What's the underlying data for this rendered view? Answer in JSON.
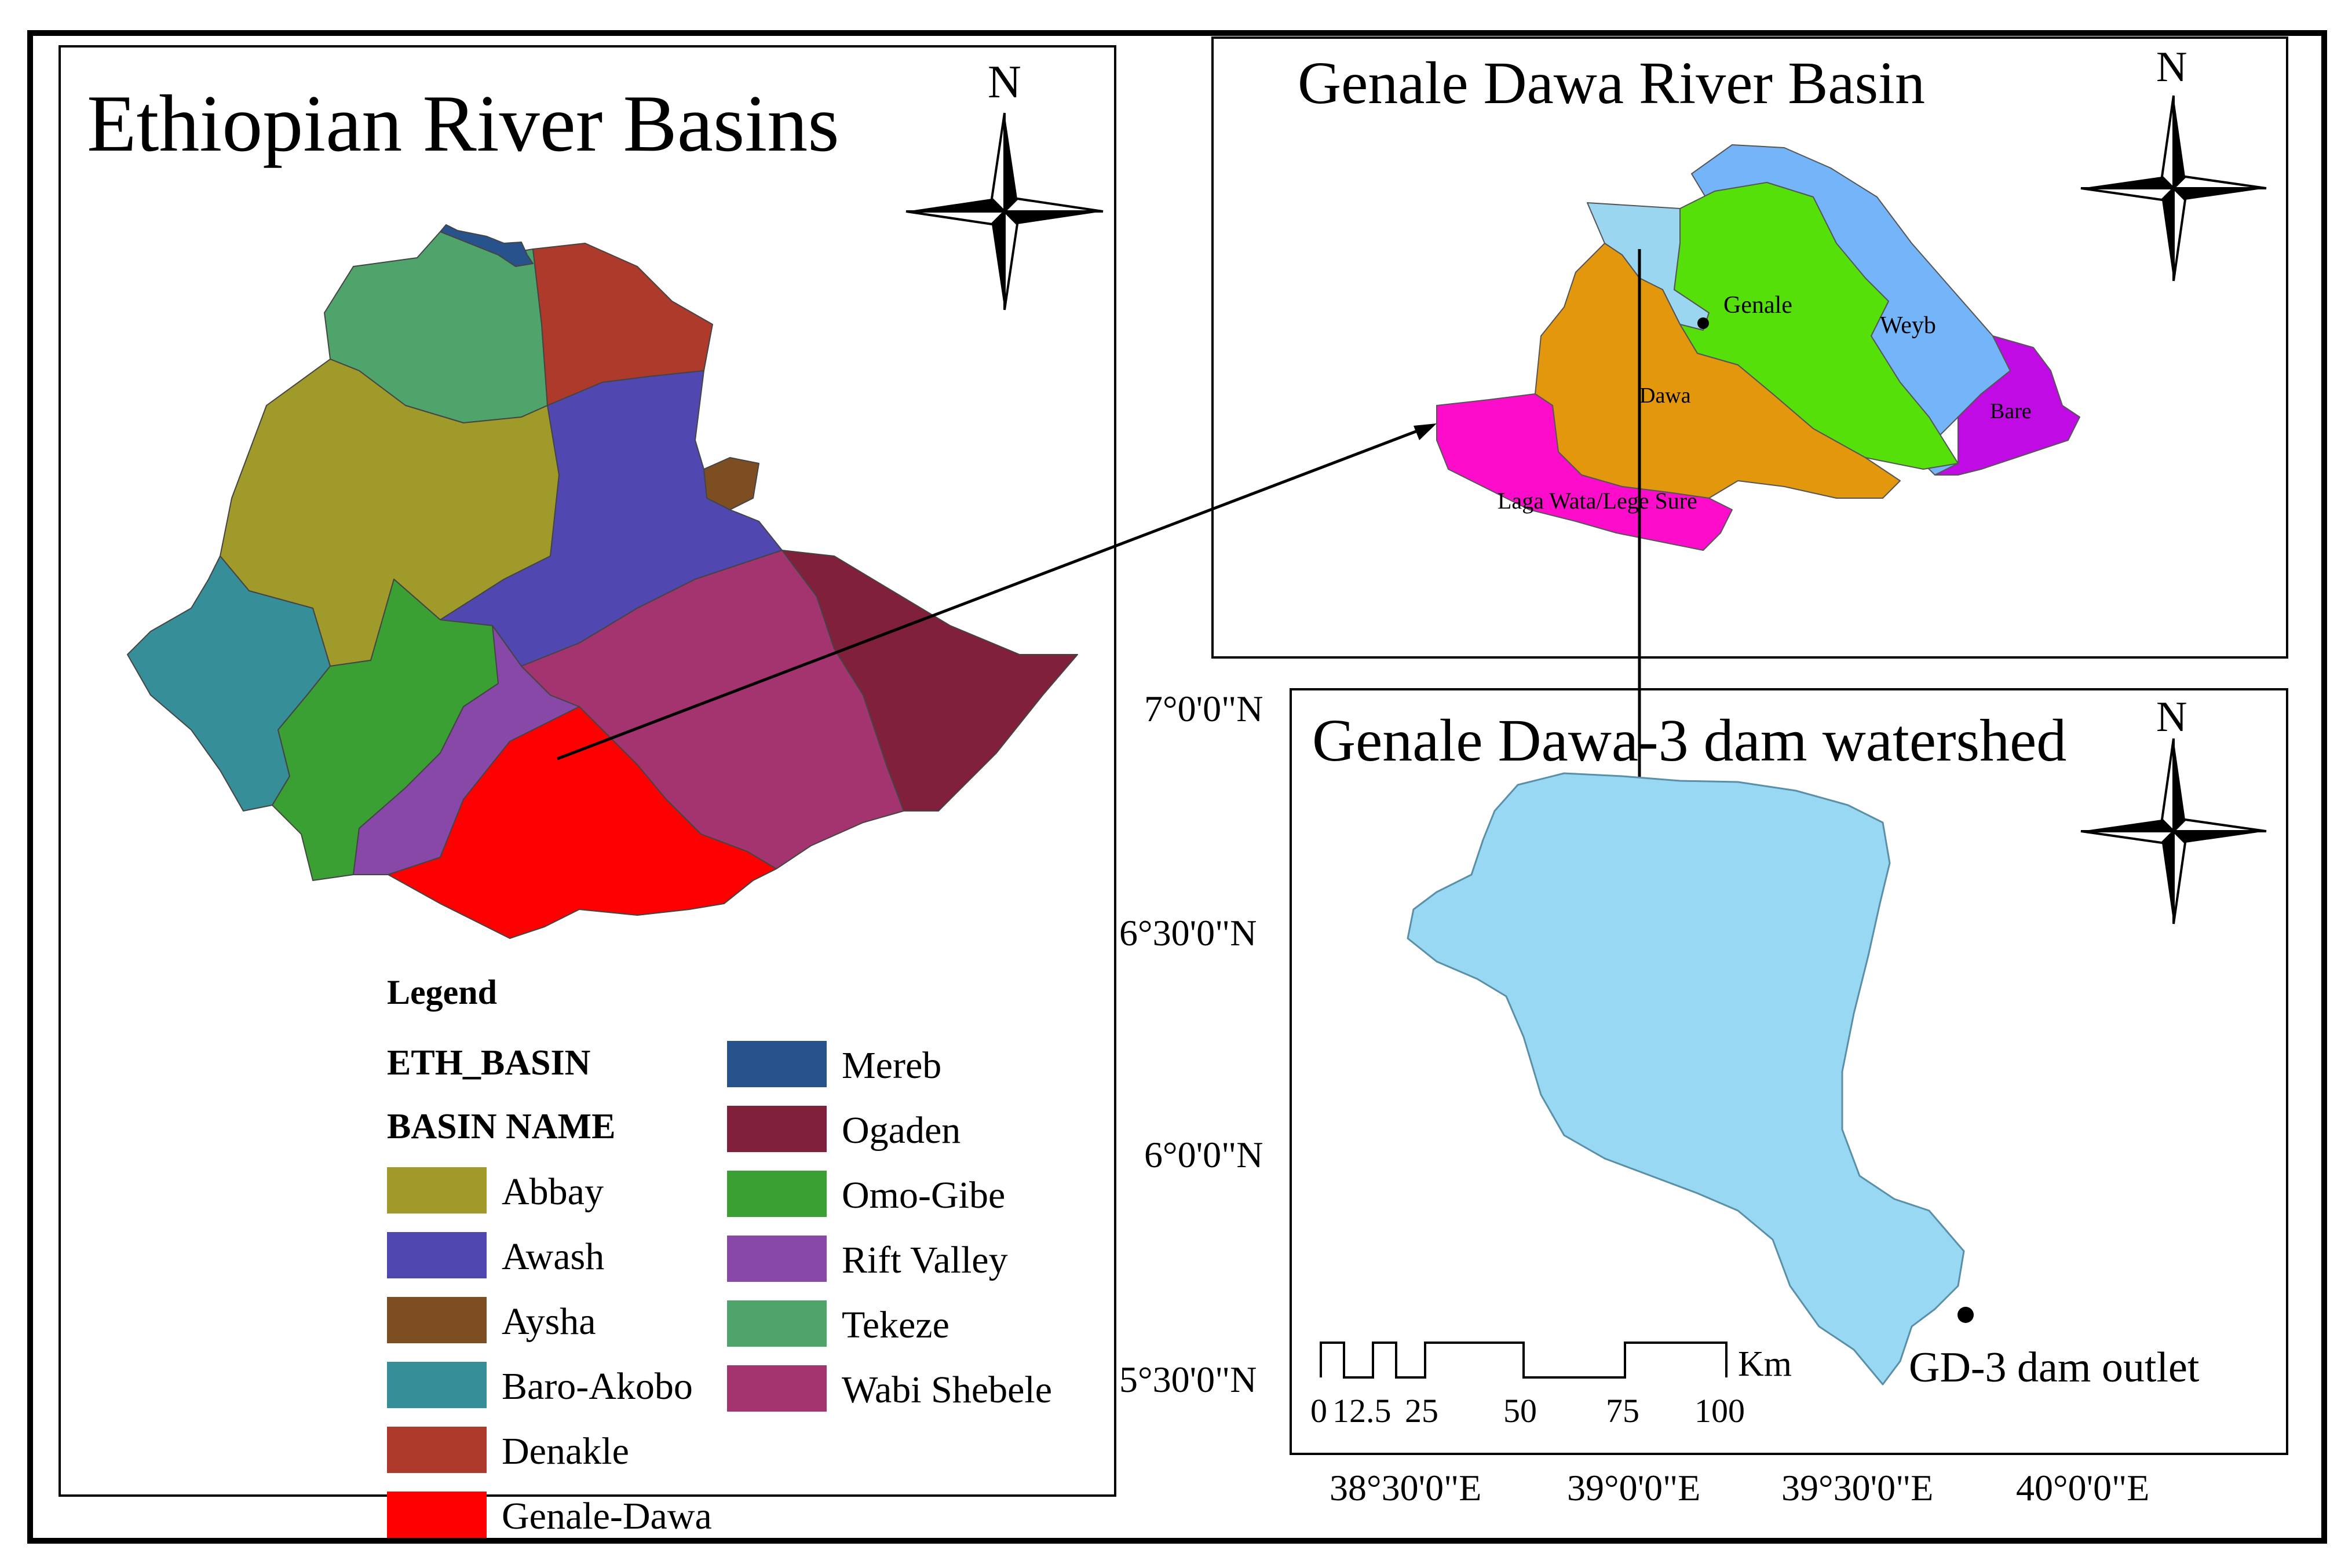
{
  "panel_left": {
    "title": "Ethiopian River Basins",
    "north": "N",
    "legend": {
      "heading": "Legend",
      "layer": "ETH_BASIN",
      "field": "BASIN NAME",
      "items": [
        {
          "label": "Abbay",
          "color": "#9f9a2a"
        },
        {
          "label": "Awash",
          "color": "#5048b0"
        },
        {
          "label": "Aysha",
          "color": "#7c4e22"
        },
        {
          "label": "Baro-Akobo",
          "color": "#368e98"
        },
        {
          "label": "Denakle",
          "color": "#ad3a2b"
        },
        {
          "label": "Genale-Dawa",
          "color": "#fe0000"
        },
        {
          "label": "Mereb",
          "color": "#27528c"
        },
        {
          "label": "Ogaden",
          "color": "#80203a"
        },
        {
          "label": "Omo-Gibe",
          "color": "#3aa034"
        },
        {
          "label": "Rift Valley",
          "color": "#8848a8"
        },
        {
          "label": "Tekeze",
          "color": "#4fa46c"
        },
        {
          "label": "Wabi Shebele",
          "color": "#a4346f"
        }
      ]
    }
  },
  "panel_basin": {
    "title": "Genale Dawa River Basin",
    "north": "N",
    "labels": {
      "genale": "Genale",
      "weyb": "Weyb",
      "dawa": "Dawa",
      "bare": "Bare",
      "laga": "Laga Wata/Lege Sure"
    },
    "colors": {
      "genale": "#55e00a",
      "weyb": "#74b4f8",
      "dawa": "#e3970c",
      "bare": "#c00be4",
      "laga": "#fe0ccc",
      "upper": "#9bd6f0"
    }
  },
  "panel_watershed": {
    "title": "Genale Dawa-3 dam watershed",
    "north": "N",
    "fill": "#98d8f2",
    "outlet_label": "GD-3 dam outlet",
    "lat_labels": [
      "7°0'0\"N",
      "6°30'0\"N",
      "6°0'0\"N",
      "5°30'0\"N"
    ],
    "lon_labels": [
      "38°30'0\"E",
      "39°0'0\"E",
      "39°30'0\"E",
      "40°0'0\"E"
    ],
    "scale_bar": {
      "unit": "Km",
      "ticks": [
        "0",
        "12.5",
        "25",
        "50",
        "75",
        "100"
      ]
    }
  }
}
